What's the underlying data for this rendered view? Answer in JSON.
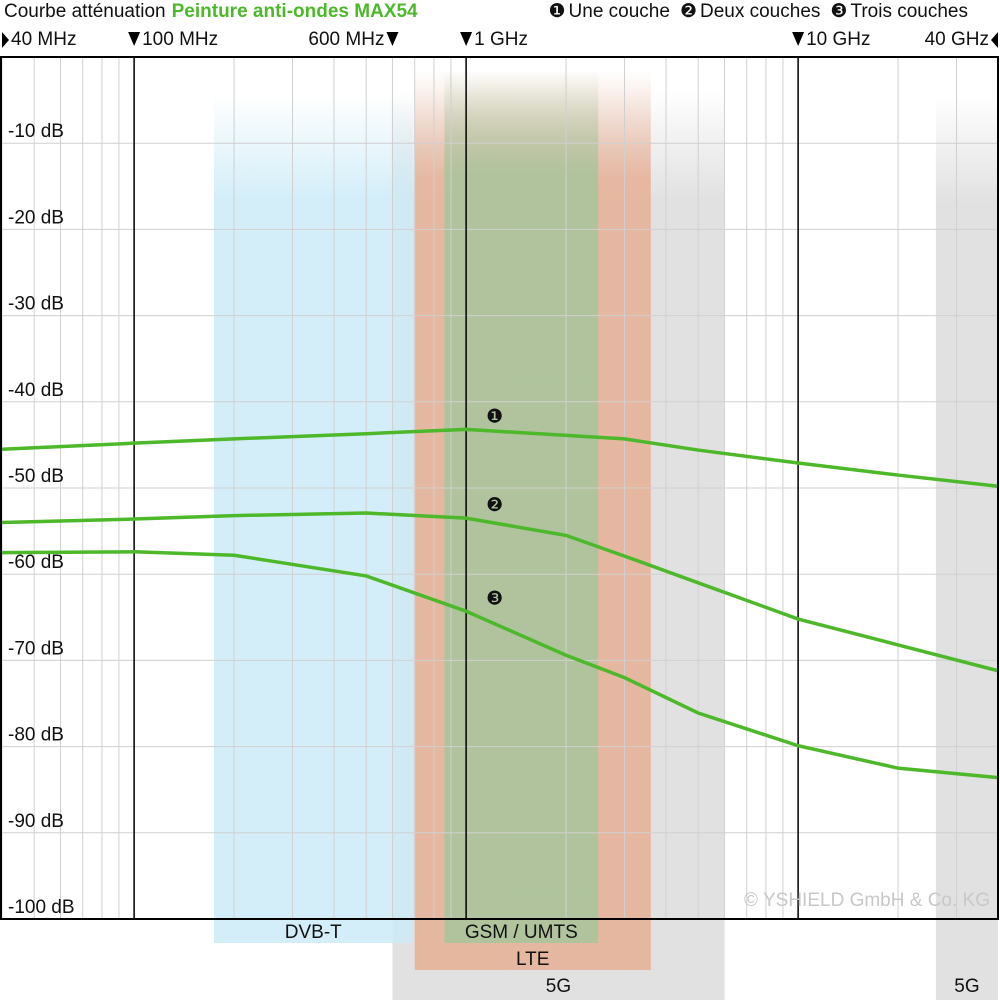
{
  "chart_data": {
    "type": "line",
    "title": "Courbe atténuation",
    "product": "Peinture anti-ondes MAX54",
    "watermark": "© YSHIELD GmbH & Co. KG",
    "log_x": true,
    "grid": true,
    "color": "#4cb82a",
    "xlim": [
      40,
      40000
    ],
    "ylim": [
      -100,
      0
    ],
    "xticks": [
      {
        "value": 40,
        "label": "40 MHz"
      },
      {
        "value": 100,
        "label": "100 MHz"
      },
      {
        "value": 600,
        "label": "600 MHz"
      },
      {
        "value": 1000,
        "label": "1 GHz"
      },
      {
        "value": 10000,
        "label": "10 GHz"
      },
      {
        "value": 40000,
        "label": "40 GHz"
      }
    ],
    "yticks": [
      {
        "value": -10,
        "label": "-10 dB"
      },
      {
        "value": -20,
        "label": "-20 dB"
      },
      {
        "value": -30,
        "label": "-30 dB"
      },
      {
        "value": -40,
        "label": "-40 dB"
      },
      {
        "value": -50,
        "label": "-50 dB"
      },
      {
        "value": -60,
        "label": "-60 dB"
      },
      {
        "value": -70,
        "label": "-70 dB"
      },
      {
        "value": -80,
        "label": "-80 dB"
      },
      {
        "value": -90,
        "label": "-90 dB"
      },
      {
        "value": -100,
        "label": "-100 dB"
      }
    ],
    "bands": [
      {
        "name": "5G",
        "range": [
          600,
          6000
        ],
        "color": "#dcdcdc"
      },
      {
        "name": "LTE",
        "range": [
          700,
          3600
        ],
        "color": "#e6b095"
      },
      {
        "name": "GSM / UMTS",
        "range": [
          860,
          2500
        ],
        "color": "#a6c59c"
      },
      {
        "name": "DVB-T",
        "range": [
          174,
          690
        ],
        "color": "#cdebf8"
      },
      {
        "name": "5G",
        "range": [
          26000,
          40000
        ],
        "color": "#dcdcdc"
      }
    ],
    "x": [
      40,
      100,
      200,
      500,
      1000,
      2000,
      3000,
      5000,
      10000,
      20000,
      40000
    ],
    "series": [
      {
        "name": "Une couche",
        "marker": "❶",
        "values": [
          -45.5,
          -44.8,
          -44.3,
          -43.7,
          -43.2,
          -43.9,
          -44.3,
          -45.6,
          -47.1,
          -48.5,
          -49.8
        ]
      },
      {
        "name": "Deux couches",
        "marker": "❷",
        "values": [
          -54.0,
          -53.6,
          -53.2,
          -52.9,
          -53.5,
          -55.5,
          -57.9,
          -61.0,
          -65.2,
          -68.2,
          -71.2
        ]
      },
      {
        "name": "Trois couches",
        "marker": "❸",
        "values": [
          -57.5,
          -57.4,
          -57.8,
          -60.2,
          -64.3,
          -69.4,
          -72.0,
          -76.1,
          -79.9,
          -82.5,
          -83.6
        ]
      }
    ]
  }
}
